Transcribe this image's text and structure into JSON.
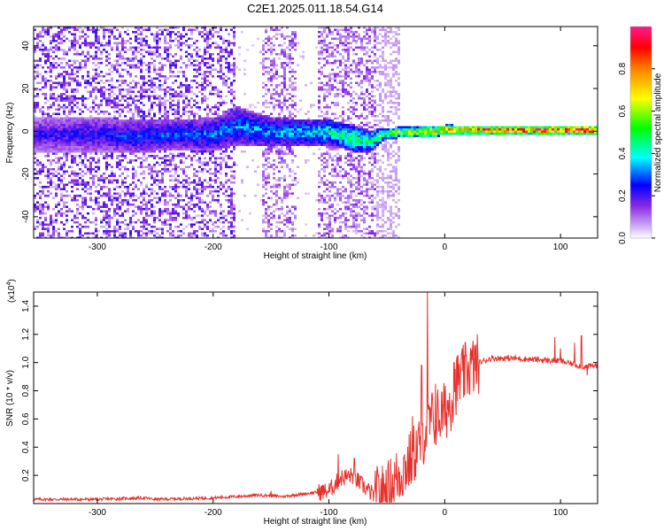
{
  "title": "C2E1.2025.011.18.54.G14",
  "colors": {
    "snr_line": "#e8302a"
  },
  "chart_data": [
    {
      "type": "heatmap",
      "xlabel": "Height of straight line (km)",
      "ylabel": "Frequency (Hz)",
      "xlim": [
        -355,
        132
      ],
      "ylim": [
        -50,
        49
      ],
      "xticks": [
        -300,
        -200,
        -100,
        0,
        100
      ],
      "xticklabels": [
        "-300",
        "-200",
        "-100",
        "0",
        "100"
      ],
      "yticks": [
        -40,
        -20,
        0,
        20,
        40
      ],
      "yticklabels": [
        "-40",
        "-20",
        "0",
        "20",
        "40"
      ],
      "colorbar": {
        "label": "Normalized spectral amplitude",
        "range": [
          0,
          1
        ],
        "ticks": [
          0.0,
          0.2,
          0.4,
          0.6,
          0.8
        ],
        "ticklabels": [
          "0.0",
          "0.2",
          "0.4",
          "0.6",
          "0.8"
        ],
        "colormap": "rainbow"
      },
      "signal_band": [
        {
          "x": -355,
          "center": -1,
          "halfwidth": 8,
          "amp": 0.22
        },
        {
          "x": -300,
          "center": -1,
          "halfwidth": 8,
          "amp": 0.25
        },
        {
          "x": -270,
          "center": -2,
          "halfwidth": 8,
          "amp": 0.28
        },
        {
          "x": -230,
          "center": -1,
          "halfwidth": 7,
          "amp": 0.3
        },
        {
          "x": -200,
          "center": -1,
          "halfwidth": 8,
          "amp": 0.32
        },
        {
          "x": -180,
          "center": 3,
          "halfwidth": 9,
          "amp": 0.33
        },
        {
          "x": -150,
          "center": 0,
          "halfwidth": 7,
          "amp": 0.35
        },
        {
          "x": -120,
          "center": 0,
          "halfwidth": 6,
          "amp": 0.38
        },
        {
          "x": -100,
          "center": 0,
          "halfwidth": 6,
          "amp": 0.45
        },
        {
          "x": -80,
          "center": -3,
          "halfwidth": 6,
          "amp": 0.5
        },
        {
          "x": -65,
          "center": -4,
          "halfwidth": 5,
          "amp": 0.5
        },
        {
          "x": -55,
          "center": -1,
          "halfwidth": 3,
          "amp": 0.58
        },
        {
          "x": -40,
          "center": 0,
          "halfwidth": 2.5,
          "amp": 0.62
        },
        {
          "x": -20,
          "center": 0,
          "halfwidth": 2.5,
          "amp": 0.7
        },
        {
          "x": 0,
          "center": 1,
          "halfwidth": 2.5,
          "amp": 0.78
        },
        {
          "x": 40,
          "center": 1,
          "halfwidth": 2,
          "amp": 0.9
        },
        {
          "x": 80,
          "center": 1,
          "halfwidth": 2,
          "amp": 0.95
        },
        {
          "x": 132,
          "center": 1,
          "halfwidth": 2,
          "amp": 0.98
        }
      ]
    },
    {
      "type": "line",
      "xlabel": "Height of straight line (km)",
      "ylabel": "SNR (10 * v/v)",
      "y_multiplier": "(x10",
      "y_multiplier_exp": "4",
      "y_multiplier_close": ")",
      "xlim": [
        -355,
        132
      ],
      "ylim": [
        0,
        1.5
      ],
      "xticks": [
        -300,
        -200,
        -100,
        0,
        100
      ],
      "xticklabels": [
        "-300",
        "-200",
        "-100",
        "0",
        "100"
      ],
      "yticks": [
        0.2,
        0.4,
        0.6,
        0.8,
        1.0,
        1.2,
        1.4
      ],
      "yticklabels": [
        "0.2",
        "0.4",
        "0.6",
        "0.8",
        "1.0",
        "1.2",
        "1.4"
      ],
      "series": [
        {
          "color": "#e8302a",
          "x": [
            -355,
            -300,
            -260,
            -250,
            -200,
            -180,
            -160,
            -140,
            -120,
            -100,
            -90,
            -80,
            -70,
            -60,
            -50,
            -40,
            -30,
            -20,
            -15,
            -10,
            -5,
            0,
            5,
            10,
            20,
            30,
            40,
            50,
            60,
            80,
            100,
            110,
            120,
            132
          ],
          "y": [
            0.03,
            0.03,
            0.04,
            0.03,
            0.04,
            0.05,
            0.06,
            0.05,
            0.07,
            0.09,
            0.18,
            0.2,
            0.12,
            0.05,
            0.08,
            0.2,
            0.3,
            0.45,
            0.55,
            0.6,
            0.62,
            0.65,
            0.72,
            0.85,
            0.95,
            1.0,
            1.03,
            1.03,
            1.03,
            1.02,
            1.01,
            0.99,
            0.97,
            0.98
          ],
          "spikes": [
            {
              "x": -150,
              "y": 0.09
            },
            {
              "x": -92,
              "y": 0.35
            },
            {
              "x": -78,
              "y": 0.32
            },
            {
              "x": -28,
              "y": 0.62
            },
            {
              "x": -20,
              "y": 0.98
            },
            {
              "x": -15,
              "y": 1.5
            },
            {
              "x": -8,
              "y": 0.85
            },
            {
              "x": 8,
              "y": 1.0
            },
            {
              "x": 20,
              "y": 0.95
            },
            {
              "x": 95,
              "y": 1.18
            },
            {
              "x": 100,
              "y": 1.1
            },
            {
              "x": 112,
              "y": 1.14
            },
            {
              "x": 118,
              "y": 1.19
            },
            {
              "x": 123,
              "y": 0.91
            }
          ]
        }
      ]
    }
  ]
}
